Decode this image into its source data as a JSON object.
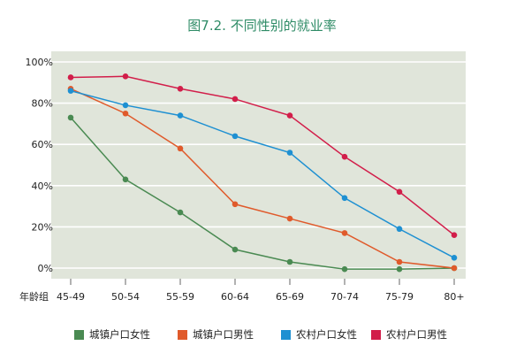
{
  "chart_data": {
    "type": "line",
    "title": "图7.2. 不同性别的就业率",
    "xlabel": "年龄组",
    "ylabel": "",
    "categories": [
      "45-49",
      "50-54",
      "55-59",
      "60-64",
      "65-69",
      "70-74",
      "75-79",
      "80+"
    ],
    "y_tick_labels": [
      "0%",
      "20%",
      "40%",
      "60%",
      "80%",
      "100%"
    ],
    "ylim": [
      0,
      100
    ],
    "grid": "horizontal",
    "legend_position": "bottom",
    "plot_background": "#e0e5da",
    "series": [
      {
        "name": "城镇户口女性",
        "color": "#4a8a52",
        "values": [
          73,
          43,
          27,
          9,
          3,
          -0.5,
          -0.5,
          0
        ]
      },
      {
        "name": "城镇户口男性",
        "color": "#e05a2b",
        "values": [
          87,
          75,
          58,
          31,
          24,
          17,
          3,
          0
        ]
      },
      {
        "name": "农村户口女性",
        "color": "#1e90d2",
        "values": [
          86,
          79,
          74,
          64,
          56,
          34,
          19,
          5
        ]
      },
      {
        "name": "农村户口男性",
        "color": "#d21e4a",
        "values": [
          92.5,
          93,
          87,
          82,
          74,
          54,
          37,
          16
        ]
      }
    ]
  }
}
